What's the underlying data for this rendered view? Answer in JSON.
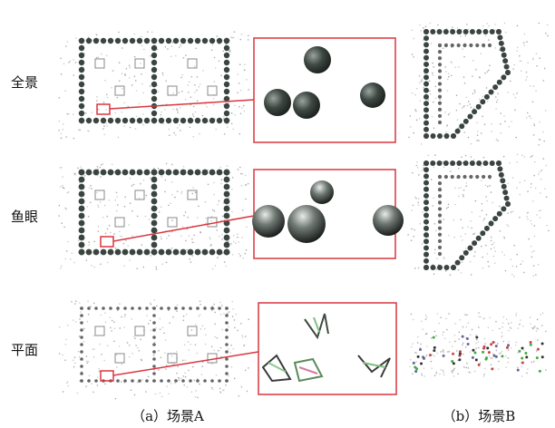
{
  "row_labels": [
    "全景",
    "鱼眼",
    "平面"
  ],
  "captions": [
    "（a）场景A",
    "（b）场景B"
  ]
}
